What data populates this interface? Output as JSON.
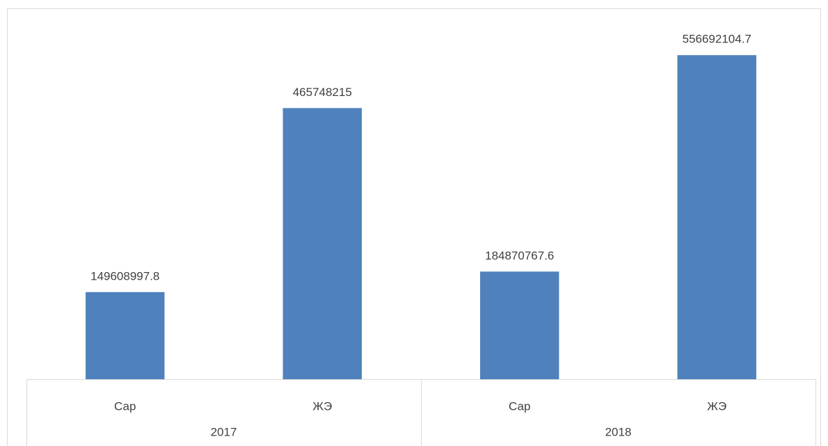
{
  "chart_data": {
    "type": "bar",
    "categories": [
      "Сар",
      "ЖЭ",
      "Сар",
      "ЖЭ"
    ],
    "groups": [
      "2017",
      "2018"
    ],
    "values": [
      149608997.8,
      465748215,
      184870767.6,
      556692104.7
    ],
    "color": "#4f81bd",
    "ylim": [
      0,
      600000000
    ]
  }
}
